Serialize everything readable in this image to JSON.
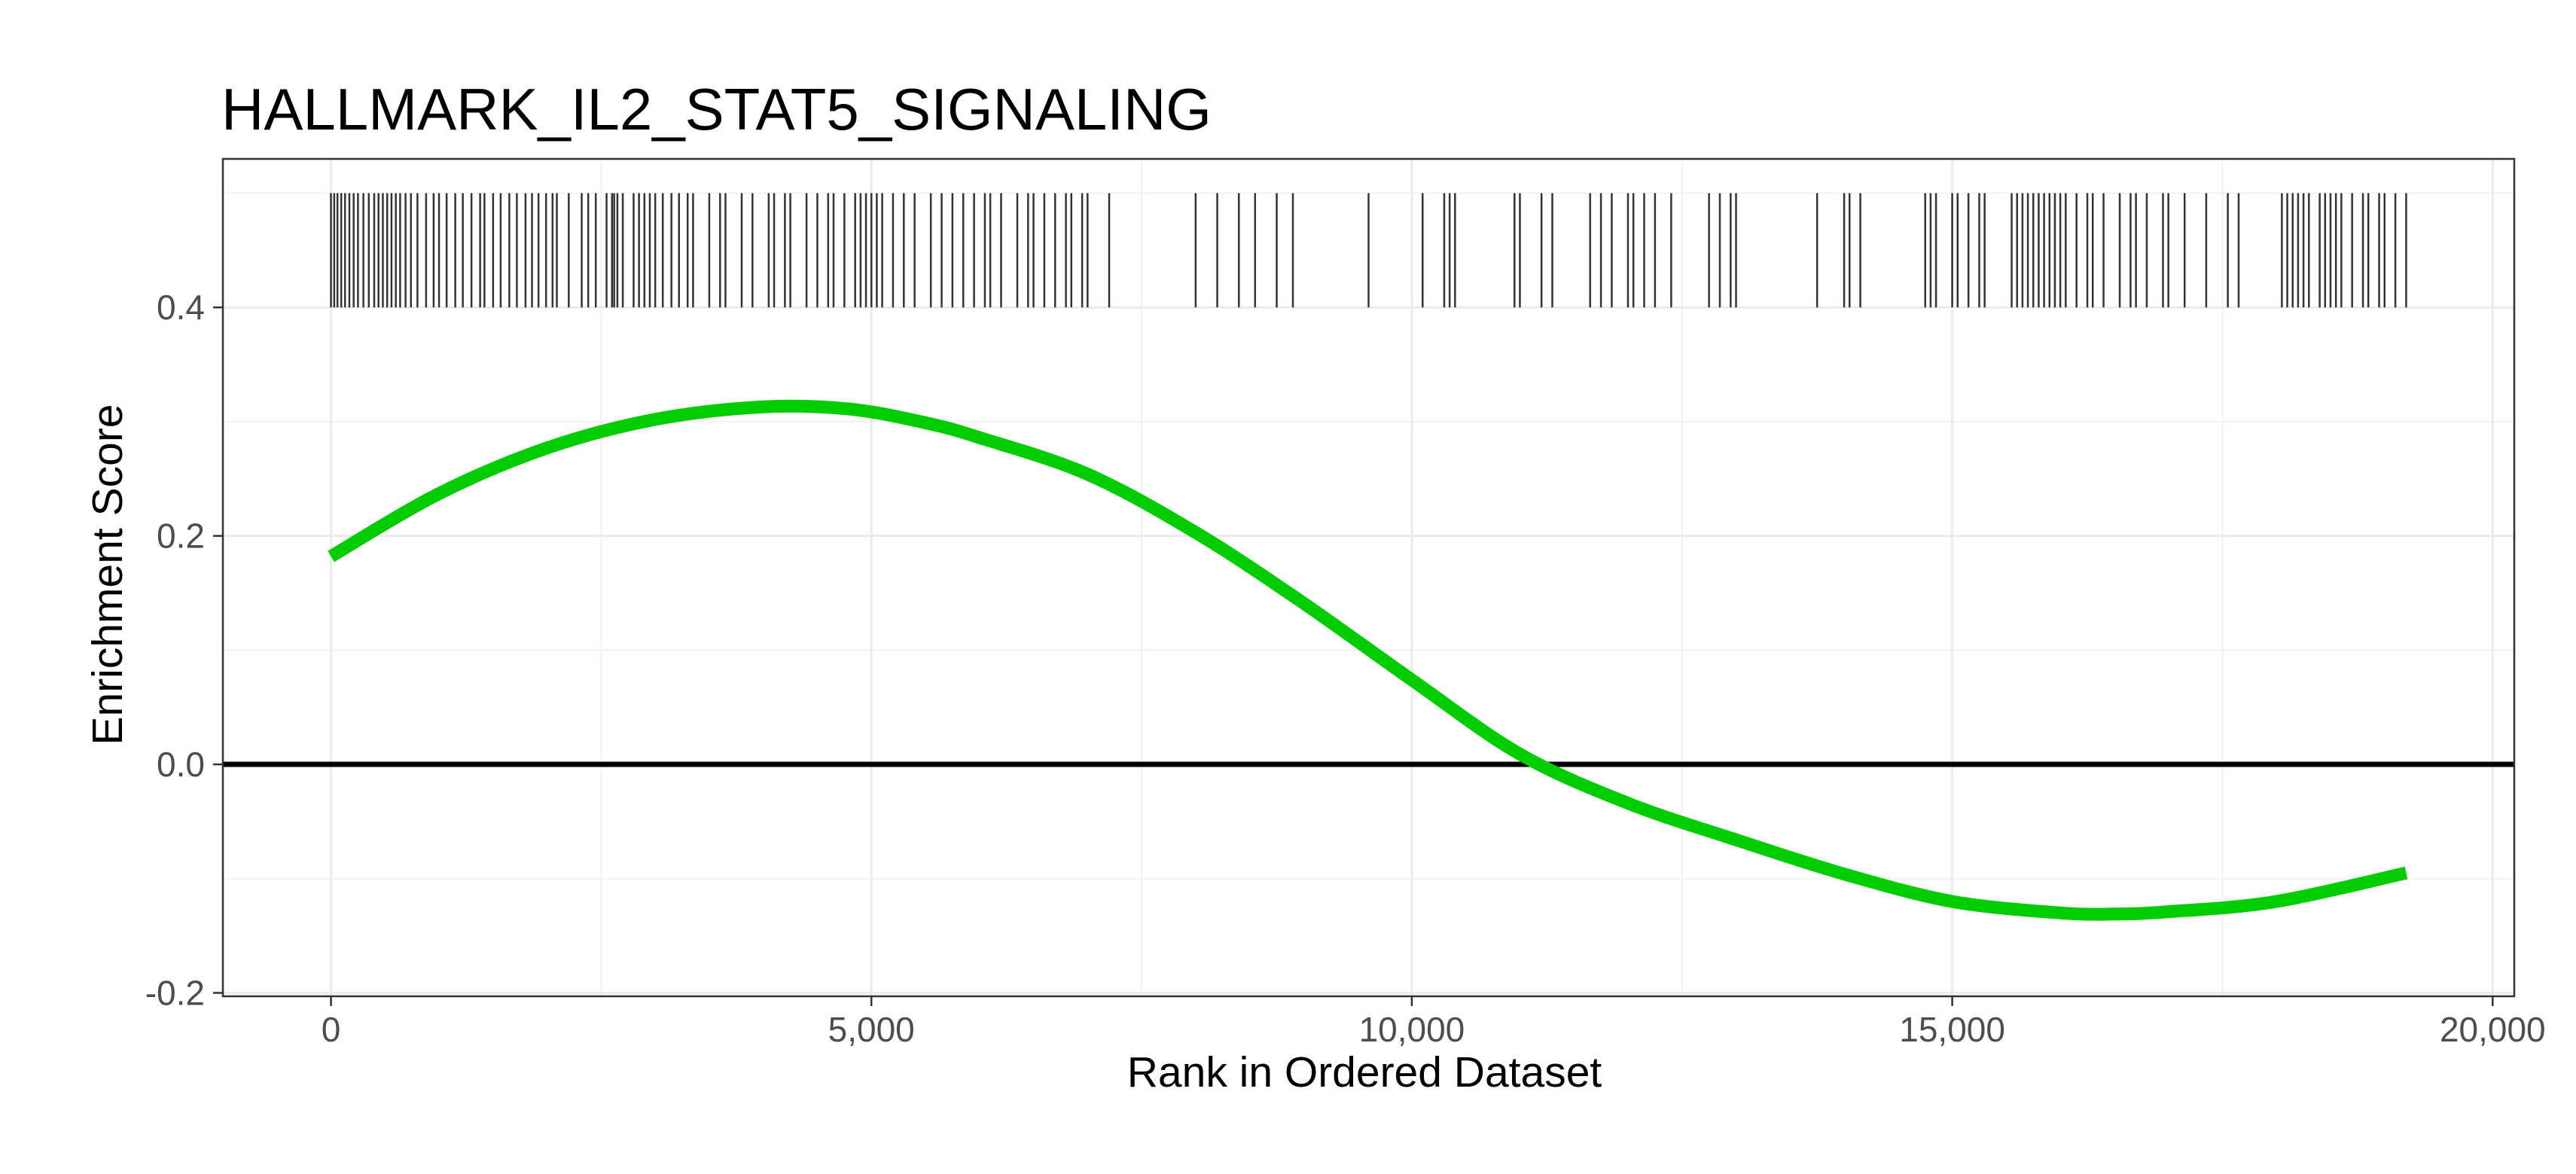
{
  "chart_data": {
    "type": "line",
    "title": "HALLMARK_IL2_STAT5_SIGNALING",
    "xlabel": "Rank in Ordered Dataset",
    "ylabel": "Enrichment Score",
    "xlim": [
      -1000,
      20200
    ],
    "ylim": [
      -0.203,
      0.53
    ],
    "x_ticks": [
      0,
      5000,
      10000,
      15000,
      20000
    ],
    "x_tick_labels": [
      "0",
      "5,000",
      "10,000",
      "15,000",
      "20,000"
    ],
    "y_ticks": [
      -0.2,
      0.0,
      0.2,
      0.4
    ],
    "y_tick_labels": [
      "-0.2",
      "0.0",
      "0.2",
      "0.4"
    ],
    "grid": true,
    "reference_line_y": 0,
    "series": [
      {
        "color": "#00cc00",
        "x": [
          0,
          1000,
          2000,
          3000,
          4000,
          4800,
          5500,
          6000,
          7000,
          8000,
          9000,
          10000,
          11000,
          12000,
          13000,
          14000,
          15000,
          16000,
          16500,
          17000,
          18000,
          19200
        ],
        "y": [
          0.182,
          0.237,
          0.277,
          0.302,
          0.313,
          0.311,
          0.299,
          0.286,
          0.254,
          0.203,
          0.141,
          0.074,
          0.009,
          -0.034,
          -0.066,
          -0.096,
          -0.12,
          -0.13,
          -0.131,
          -0.129,
          -0.12,
          -0.095
        ]
      }
    ],
    "rug": {
      "color": "#333333",
      "y_range": [
        0.4,
        0.5
      ],
      "positions": [
        0,
        30,
        60,
        95,
        130,
        170,
        210,
        250,
        300,
        350,
        400,
        440,
        480,
        520,
        560,
        600,
        640,
        690,
        740,
        800,
        880,
        950,
        1000,
        1070,
        1150,
        1220,
        1300,
        1380,
        1420,
        1500,
        1570,
        1650,
        1720,
        1800,
        1860,
        1920,
        1990,
        2050,
        2090,
        2200,
        2320,
        2380,
        2450,
        2550,
        2600,
        2620,
        2650,
        2700,
        2800,
        2850,
        2900,
        2950,
        3000,
        3070,
        3150,
        3220,
        3300,
        3350,
        3500,
        3600,
        3650,
        3800,
        3900,
        4050,
        4100,
        4200,
        4250,
        4400,
        4500,
        4600,
        4650,
        4750,
        4850,
        4900,
        4950,
        5000,
        5050,
        5100,
        5200,
        5300,
        5400,
        5550,
        5650,
        5750,
        5850,
        5950,
        6050,
        6100,
        6200,
        6350,
        6450,
        6500,
        6600,
        6700,
        6800,
        6850,
        6950,
        7000,
        7200,
        8000,
        8200,
        8400,
        8550,
        8750,
        8900,
        9600,
        10100,
        10300,
        10350,
        10400,
        10950,
        11000,
        11200,
        11300,
        11650,
        11750,
        11850,
        12000,
        12050,
        12150,
        12250,
        12400,
        12750,
        12850,
        12950,
        13000,
        13750,
        14000,
        14050,
        14150,
        14750,
        14800,
        14850,
        15000,
        15050,
        15150,
        15250,
        15300,
        15550,
        15600,
        15650,
        15700,
        15750,
        15800,
        15850,
        15900,
        15950,
        16000,
        16050,
        16150,
        16250,
        16300,
        16400,
        16550,
        16650,
        16700,
        16800,
        16950,
        17000,
        17150,
        17350,
        17550,
        17650,
        18050,
        18100,
        18150,
        18200,
        18250,
        18300,
        18400,
        18450,
        18500,
        18550,
        18600,
        18700,
        18800,
        18850,
        18950,
        19000,
        19100,
        19200
      ]
    }
  }
}
